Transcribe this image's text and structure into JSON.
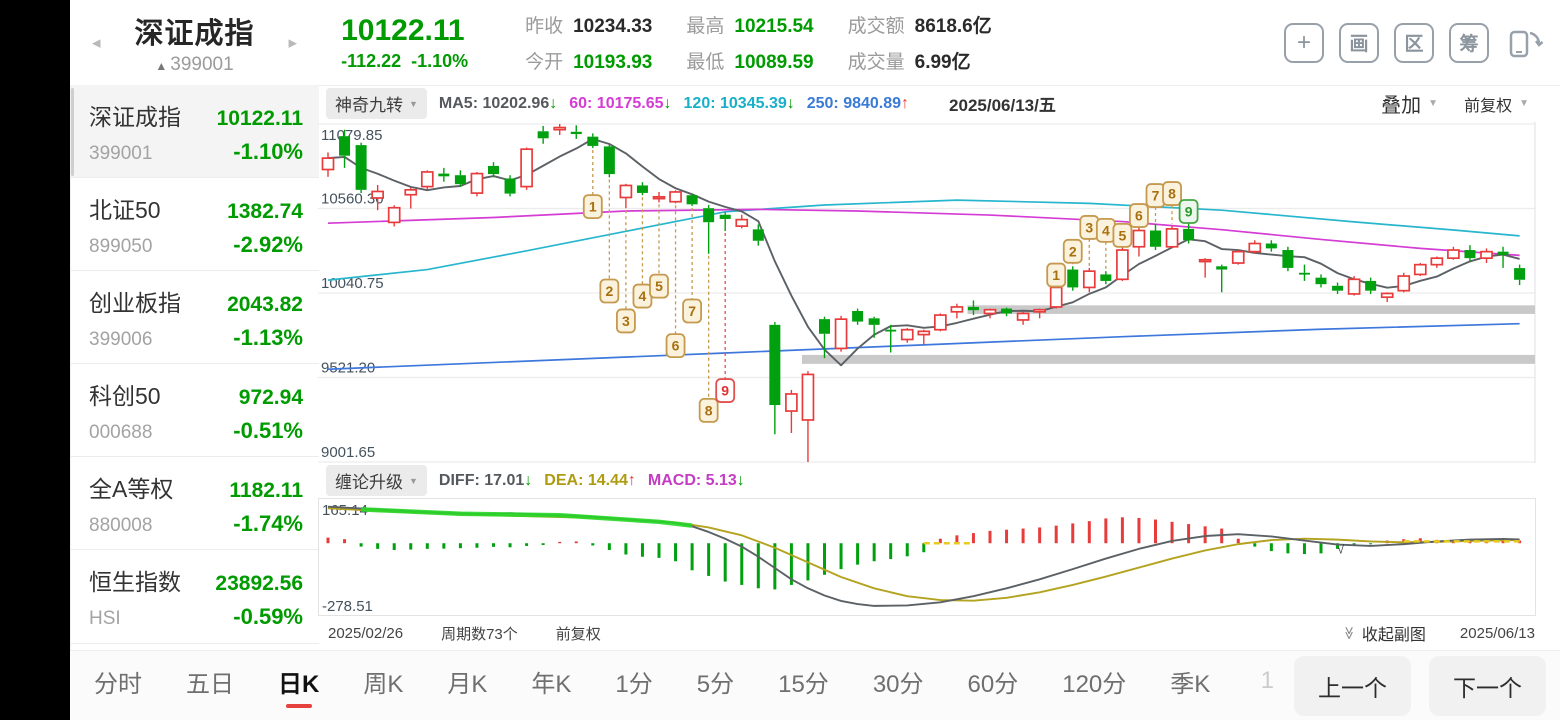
{
  "header": {
    "title": "深证成指",
    "code": "399001",
    "code_marker": "▲",
    "price": "10122.11",
    "change": "-112.22",
    "change_pct": "-1.10%",
    "nav_left": "◂",
    "nav_right": "▸",
    "stats": [
      {
        "label": "昨收",
        "value": "10234.33"
      },
      {
        "label": "最高",
        "value": "10215.54"
      },
      {
        "label": "成交额",
        "value": "8618.6亿"
      },
      {
        "label": "今开",
        "value": "10193.93"
      },
      {
        "label": "最低",
        "value": "10089.59"
      },
      {
        "label": "成交量",
        "value": "6.99亿"
      }
    ],
    "toolbar_icons": [
      "+",
      "画",
      "区",
      "筹"
    ]
  },
  "watchlist": {
    "items": [
      {
        "name": "深证成指",
        "code": "399001",
        "value": "10122.11",
        "pct": "-1.10%"
      },
      {
        "name": "北证50",
        "code": "899050",
        "value": "1382.74",
        "pct": "-2.92%"
      },
      {
        "name": "创业板指",
        "code": "399006",
        "value": "2043.82",
        "pct": "-1.13%"
      },
      {
        "name": "科创50",
        "code": "000688",
        "value": "972.94",
        "pct": "-0.51%"
      },
      {
        "name": "全A等权",
        "code": "880008",
        "value": "1182.11",
        "pct": "-1.74%"
      },
      {
        "name": "恒生指数",
        "code": "HSI",
        "value": "23892.56",
        "pct": "-0.59%"
      }
    ]
  },
  "chart": {
    "indicator_pill": "神奇九转",
    "ma5_label": "MA5: 10202.96",
    "ma5_dir": "↓",
    "ma60_label": "60: 10175.65",
    "ma60_dir": "↓",
    "ma120_label": "120: 10345.39",
    "ma120_dir": "↓",
    "ma250_label": "250: 9840.89",
    "ma250_dir": "↑",
    "date": "2025/06/13/五",
    "overlay_label": "叠加",
    "adjust_label": "前复权",
    "caret": "▼"
  },
  "sub": {
    "indicator_pill": "缠论升级",
    "diff_label": "DIFF: 17.01",
    "diff_dir": "↓",
    "dea_label": "DEA: 14.44",
    "dea_dir": "↑",
    "macd_label": "MACD: 5.13",
    "macd_dir": "↓"
  },
  "footer": {
    "date_start": "2025/02/26",
    "periods": "周期数73个",
    "adjust": "前复权",
    "collapse_icon": "≫",
    "collapse_label": "收起副图",
    "date_end": "2025/06/13"
  },
  "tabs": {
    "items": [
      "分时",
      "五日",
      "日K",
      "周K",
      "月K",
      "年K",
      "1分",
      "5分",
      "15分",
      "30分",
      "60分",
      "120分",
      "季K",
      "1"
    ],
    "active": "日K",
    "active_index": 2,
    "prev": "上一个",
    "next": "下一个"
  },
  "chart_data": {
    "type": "candlestick",
    "title": "深证成指 日K 前复权",
    "periods": 73,
    "date_range": [
      "2025/02/26",
      "2025/06/13"
    ],
    "y_gridlines": [
      11079.85,
      10560.3,
      10040.75,
      9521.2,
      9001.65
    ],
    "ylim": [
      9001.65,
      11079.85
    ],
    "last_ohlc": {
      "open": 10193.93,
      "high": 10215.54,
      "low": 10089.59,
      "close": 10122.11
    },
    "candles": [
      [
        10800,
        10905,
        10755,
        10870
      ],
      [
        11005,
        11045,
        10810,
        10885
      ],
      [
        10950,
        10965,
        10655,
        10675
      ],
      [
        10625,
        10705,
        10550,
        10665
      ],
      [
        10475,
        10580,
        10450,
        10565
      ],
      [
        10645,
        10690,
        10560,
        10675
      ],
      [
        10695,
        10795,
        10675,
        10785
      ],
      [
        10775,
        10810,
        10725,
        10758
      ],
      [
        10765,
        10795,
        10695,
        10710
      ],
      [
        10655,
        10785,
        10635,
        10775
      ],
      [
        10822,
        10845,
        10752,
        10772
      ],
      [
        10745,
        10765,
        10635,
        10652
      ],
      [
        10695,
        10935,
        10675,
        10925
      ],
      [
        11035,
        11068,
        10958,
        10992
      ],
      [
        11045,
        11079.85,
        11012,
        11058
      ],
      [
        11032,
        11072,
        10988,
        11018
      ],
      [
        11002,
        11022,
        10932,
        10945
      ],
      [
        10942,
        10952,
        10752,
        10772
      ],
      [
        10628,
        10712,
        10562,
        10702
      ],
      [
        10702,
        10722,
        10642,
        10656
      ],
      [
        10622,
        10662,
        10598,
        10632
      ],
      [
        10602,
        10672,
        10592,
        10662
      ],
      [
        10642,
        10652,
        10576,
        10586
      ],
      [
        10562,
        10582,
        10282,
        10476
      ],
      [
        10522,
        10536,
        10422,
        10496
      ],
      [
        10452,
        10522,
        10438,
        10492
      ],
      [
        10432,
        10462,
        10332,
        10362
      ],
      [
        9845,
        9862,
        9172,
        9352
      ],
      [
        9315,
        9445,
        9180,
        9420
      ],
      [
        9260,
        9560,
        9001.65,
        9540
      ],
      [
        9880,
        9895,
        9640,
        9790
      ],
      [
        9700,
        9900,
        9680,
        9880
      ],
      [
        9930,
        9945,
        9845,
        9865
      ],
      [
        9885,
        9895,
        9765,
        9845
      ],
      [
        9815,
        9845,
        9675,
        9805
      ],
      [
        9755,
        9825,
        9735,
        9815
      ],
      [
        9785,
        9815,
        9725,
        9805
      ],
      [
        9815,
        9915,
        9805,
        9905
      ],
      [
        9925,
        9975,
        9885,
        9955
      ],
      [
        9955,
        9995,
        9905,
        9935
      ],
      [
        9915,
        9945,
        9885,
        9938
      ],
      [
        9945,
        9951,
        9898,
        9915
      ],
      [
        9875,
        9925,
        9845,
        9915
      ],
      [
        9925,
        9945,
        9885,
        9938
      ],
      [
        9955,
        10095,
        9945,
        10075
      ],
      [
        10185,
        10205,
        10055,
        10075
      ],
      [
        10075,
        10195,
        10045,
        10175
      ],
      [
        10155,
        10175,
        10095,
        10115
      ],
      [
        10125,
        10325,
        10115,
        10305
      ],
      [
        10325,
        10445,
        10265,
        10425
      ],
      [
        10425,
        10465,
        10305,
        10325
      ],
      [
        10325,
        10455,
        10315,
        10435
      ],
      [
        10435,
        10475,
        10345,
        10365
      ],
      [
        10245,
        10255,
        10135,
        10245
      ],
      [
        10205,
        10215,
        10045,
        10185
      ],
      [
        10225,
        10305,
        10215,
        10295
      ],
      [
        10295,
        10365,
        10285,
        10345
      ],
      [
        10345,
        10365,
        10295,
        10315
      ],
      [
        10305,
        10325,
        10175,
        10195
      ],
      [
        10165,
        10215,
        10115,
        10155
      ],
      [
        10135,
        10155,
        10075,
        10095
      ],
      [
        10085,
        10105,
        10035,
        10055
      ],
      [
        10035,
        10145,
        10025,
        10125
      ],
      [
        10115,
        10135,
        10035,
        10055
      ],
      [
        10015,
        10045,
        9985,
        10038
      ],
      [
        10055,
        10165,
        10045,
        10145
      ],
      [
        10155,
        10225,
        10145,
        10215
      ],
      [
        10215,
        10265,
        10195,
        10255
      ],
      [
        10255,
        10325,
        10245,
        10305
      ],
      [
        10305,
        10335,
        10235,
        10255
      ],
      [
        10255,
        10315,
        10225,
        10295
      ],
      [
        10295,
        10325,
        10195,
        10275
      ],
      [
        10193.93,
        10215.54,
        10089.59,
        10122.11
      ]
    ],
    "ma": {
      "ma60": {
        "color": "#d43cd4",
        "points": [
          [
            0,
            10470
          ],
          [
            10,
            10505
          ],
          [
            18,
            10545
          ],
          [
            26,
            10555
          ],
          [
            32,
            10545
          ],
          [
            40,
            10520
          ],
          [
            48,
            10480
          ],
          [
            54,
            10430
          ],
          [
            60,
            10370
          ],
          [
            66,
            10315
          ],
          [
            72,
            10272
          ]
        ]
      },
      "ma120": {
        "color": "#27b6ce",
        "points": [
          [
            0,
            10120
          ],
          [
            6,
            10185
          ],
          [
            12,
            10300
          ],
          [
            18,
            10420
          ],
          [
            24,
            10540
          ],
          [
            30,
            10582
          ],
          [
            38,
            10612
          ],
          [
            46,
            10592
          ],
          [
            54,
            10550
          ],
          [
            62,
            10478
          ],
          [
            68,
            10428
          ],
          [
            72,
            10392
          ]
        ]
      },
      "ma250": {
        "color": "#3e78dc",
        "points": [
          [
            0,
            9572
          ],
          [
            12,
            9622
          ],
          [
            24,
            9672
          ],
          [
            36,
            9722
          ],
          [
            48,
            9772
          ],
          [
            60,
            9818
          ],
          [
            72,
            9852
          ]
        ]
      }
    },
    "bands": [
      {
        "start": 29,
        "v_top": 9660,
        "v_bottom": 9605
      },
      {
        "start": 39,
        "v_top": 9965,
        "v_bottom": 9912
      }
    ],
    "td_buy": {
      "start_idx": 16,
      "counts": [
        1,
        2,
        3,
        4,
        5,
        6,
        7,
        8,
        9
      ],
      "v": [
        10572,
        10053,
        9869,
        10022,
        10083,
        9717,
        9930,
        9319,
        9441
      ]
    },
    "td_sell": {
      "start_idx": 44,
      "counts": [
        1,
        2,
        3,
        4,
        5,
        6,
        7,
        8,
        9
      ],
      "v": [
        10151,
        10297,
        10444,
        10426,
        10395,
        10517,
        10640,
        10652,
        10542
      ]
    },
    "macd": {
      "ylim": [
        -278.51,
        165.14
      ],
      "y_labels": [
        "165.14",
        "-278.51"
      ],
      "hist": [
        25,
        18,
        -15,
        -25,
        -30,
        -28,
        -25,
        -24,
        -22,
        -20,
        -16,
        -18,
        -12,
        -8,
        6,
        8,
        -10,
        -30,
        -50,
        -60,
        -65,
        -80,
        -120,
        -145,
        -170,
        -185,
        -200,
        -205,
        -185,
        -165,
        -140,
        -115,
        -95,
        -80,
        -70,
        -58,
        -40,
        20,
        35,
        45,
        55,
        60,
        65,
        70,
        78,
        88,
        98,
        110,
        115,
        112,
        105,
        95,
        85,
        75,
        65,
        20,
        -15,
        -35,
        -45,
        -48,
        -45,
        -25,
        -12,
        -5,
        12,
        18,
        22,
        15,
        12,
        10,
        15,
        18,
        12
      ],
      "diff_points": [
        [
          0,
          162
        ],
        [
          3,
          150
        ],
        [
          6,
          138
        ],
        [
          9,
          130
        ],
        [
          11,
          133
        ],
        [
          13,
          126
        ],
        [
          15,
          122
        ],
        [
          17,
          112
        ],
        [
          19,
          100
        ],
        [
          21,
          90
        ],
        [
          22,
          75
        ],
        [
          23,
          50
        ],
        [
          24,
          20
        ],
        [
          25,
          -15
        ],
        [
          26,
          -60
        ],
        [
          27,
          -110
        ],
        [
          28,
          -160
        ],
        [
          29,
          -200
        ],
        [
          30,
          -232
        ],
        [
          31,
          -256
        ],
        [
          32,
          -270
        ],
        [
          33,
          -278
        ],
        [
          35,
          -276
        ],
        [
          37,
          -262
        ],
        [
          39,
          -235
        ],
        [
          41,
          -200
        ],
        [
          43,
          -160
        ],
        [
          45,
          -115
        ],
        [
          47,
          -68
        ],
        [
          49,
          -25
        ],
        [
          51,
          10
        ],
        [
          53,
          32
        ],
        [
          55,
          40
        ],
        [
          57,
          30
        ],
        [
          59,
          12
        ],
        [
          61,
          -6
        ],
        [
          63,
          -12
        ],
        [
          65,
          -4
        ],
        [
          67,
          8
        ],
        [
          69,
          16
        ],
        [
          71,
          19
        ],
        [
          72,
          17
        ]
      ],
      "dea_points": [
        [
          0,
          155
        ],
        [
          4,
          140
        ],
        [
          8,
          128
        ],
        [
          12,
          120
        ],
        [
          16,
          112
        ],
        [
          19,
          102
        ],
        [
          21,
          92
        ],
        [
          23,
          70
        ],
        [
          25,
          35
        ],
        [
          27,
          -20
        ],
        [
          29,
          -85
        ],
        [
          31,
          -150
        ],
        [
          33,
          -200
        ],
        [
          35,
          -235
        ],
        [
          37,
          -252
        ],
        [
          39,
          -255
        ],
        [
          41,
          -242
        ],
        [
          43,
          -218
        ],
        [
          45,
          -185
        ],
        [
          47,
          -148
        ],
        [
          49,
          -108
        ],
        [
          51,
          -68
        ],
        [
          53,
          -32
        ],
        [
          55,
          -4
        ],
        [
          57,
          14
        ],
        [
          59,
          20
        ],
        [
          61,
          16
        ],
        [
          63,
          8
        ],
        [
          65,
          4
        ],
        [
          67,
          6
        ],
        [
          69,
          10
        ],
        [
          71,
          13
        ],
        [
          72,
          14
        ]
      ],
      "segment_points": [
        [
          2,
          150
        ],
        [
          8,
          131
        ],
        [
          14,
          124
        ],
        [
          20,
          95
        ],
        [
          22,
          78
        ]
      ],
      "yellow_dashes": [
        [
          [
            36,
            0
          ],
          [
            39,
            0
          ]
        ],
        [
          [
            65,
            8
          ],
          [
            72,
            8
          ]
        ]
      ],
      "check_mark": {
        "idx": 61,
        "v": -45,
        "glyph": "√"
      }
    }
  }
}
